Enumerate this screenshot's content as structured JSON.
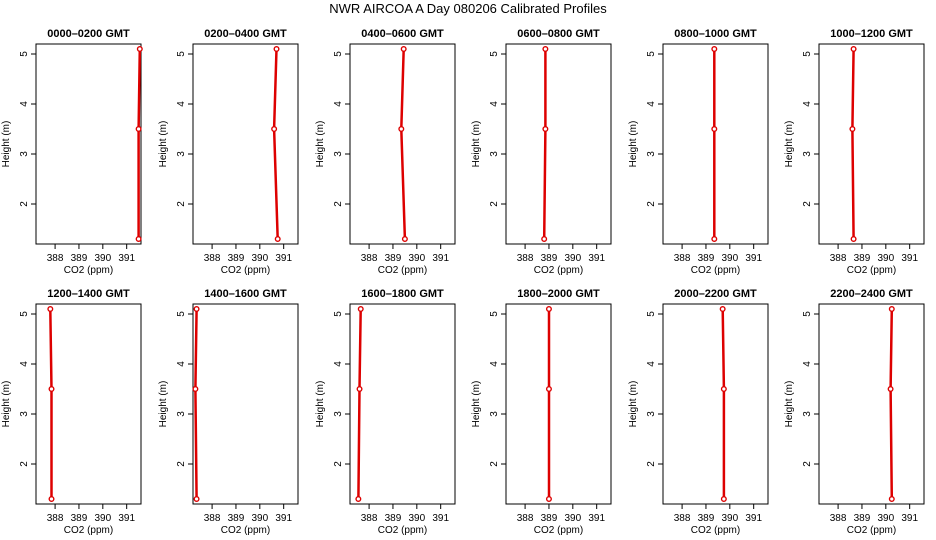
{
  "title": "NWR AIRCOA A  Day 080206  Calibrated Profiles",
  "colors": {
    "profile": "#dd0000",
    "axis": "#000000",
    "background": "#ffffff"
  },
  "chart_data": [
    {
      "type": "line",
      "title": "0000–0200 GMT",
      "xlabel": "CO2 (ppm)",
      "ylabel": "Height (m)",
      "xlim": [
        387.2,
        391.6
      ],
      "ylim": [
        1.2,
        5.2
      ],
      "xticks": [
        388,
        389,
        390,
        391
      ],
      "yticks": [
        2,
        3,
        4,
        5
      ],
      "grid": false,
      "series": [
        {
          "x": [
            391.5,
            391.5,
            391.55
          ],
          "y": [
            1.3,
            3.5,
            5.1
          ]
        }
      ]
    },
    {
      "type": "line",
      "title": "0200–0400 GMT",
      "xlabel": "CO2 (ppm)",
      "ylabel": "Height (m)",
      "xlim": [
        387.2,
        391.6
      ],
      "ylim": [
        1.2,
        5.2
      ],
      "xticks": [
        388,
        389,
        390,
        391
      ],
      "yticks": [
        2,
        3,
        4,
        5
      ],
      "grid": false,
      "series": [
        {
          "x": [
            390.75,
            390.6,
            390.7
          ],
          "y": [
            1.3,
            3.5,
            5.1
          ]
        }
      ]
    },
    {
      "type": "line",
      "title": "0400–0600 GMT",
      "xlabel": "CO2 (ppm)",
      "ylabel": "Height (m)",
      "xlim": [
        387.2,
        391.6
      ],
      "ylim": [
        1.2,
        5.2
      ],
      "xticks": [
        388,
        389,
        390,
        391
      ],
      "yticks": [
        2,
        3,
        4,
        5
      ],
      "grid": false,
      "series": [
        {
          "x": [
            389.5,
            389.35,
            389.45
          ],
          "y": [
            1.3,
            3.5,
            5.1
          ]
        }
      ]
    },
    {
      "type": "line",
      "title": "0600–0800 GMT",
      "xlabel": "CO2 (ppm)",
      "ylabel": "Height (m)",
      "xlim": [
        387.2,
        391.6
      ],
      "ylim": [
        1.2,
        5.2
      ],
      "xticks": [
        388,
        389,
        390,
        391
      ],
      "yticks": [
        2,
        3,
        4,
        5
      ],
      "grid": false,
      "series": [
        {
          "x": [
            388.8,
            388.85,
            388.85
          ],
          "y": [
            1.3,
            3.5,
            5.1
          ]
        }
      ]
    },
    {
      "type": "line",
      "title": "0800–1000 GMT",
      "xlabel": "CO2 (ppm)",
      "ylabel": "Height (m)",
      "xlim": [
        387.2,
        391.6
      ],
      "ylim": [
        1.2,
        5.2
      ],
      "xticks": [
        388,
        389,
        390,
        391
      ],
      "yticks": [
        2,
        3,
        4,
        5
      ],
      "grid": false,
      "series": [
        {
          "x": [
            389.35,
            389.35,
            389.35
          ],
          "y": [
            1.3,
            3.5,
            5.1
          ]
        }
      ]
    },
    {
      "type": "line",
      "title": "1000–1200 GMT",
      "xlabel": "CO2 (ppm)",
      "ylabel": "Height (m)",
      "xlim": [
        387.2,
        391.6
      ],
      "ylim": [
        1.2,
        5.2
      ],
      "xticks": [
        388,
        389,
        390,
        391
      ],
      "yticks": [
        2,
        3,
        4,
        5
      ],
      "grid": false,
      "series": [
        {
          "x": [
            388.65,
            388.6,
            388.65
          ],
          "y": [
            1.3,
            3.5,
            5.1
          ]
        }
      ]
    },
    {
      "type": "line",
      "title": "1200–1400 GMT",
      "xlabel": "CO2 (ppm)",
      "ylabel": "Height (m)",
      "xlim": [
        387.2,
        391.6
      ],
      "ylim": [
        1.2,
        5.2
      ],
      "xticks": [
        388,
        389,
        390,
        391
      ],
      "yticks": [
        2,
        3,
        4,
        5
      ],
      "grid": false,
      "series": [
        {
          "x": [
            387.85,
            387.85,
            387.8
          ],
          "y": [
            1.3,
            3.5,
            5.1
          ]
        }
      ]
    },
    {
      "type": "line",
      "title": "1400–1600 GMT",
      "xlabel": "CO2 (ppm)",
      "ylabel": "Height (m)",
      "xlim": [
        387.2,
        391.6
      ],
      "ylim": [
        1.2,
        5.2
      ],
      "xticks": [
        388,
        389,
        390,
        391
      ],
      "yticks": [
        2,
        3,
        4,
        5
      ],
      "grid": false,
      "series": [
        {
          "x": [
            387.35,
            387.3,
            387.35
          ],
          "y": [
            1.3,
            3.5,
            5.1
          ]
        }
      ]
    },
    {
      "type": "line",
      "title": "1600–1800 GMT",
      "xlabel": "CO2 (ppm)",
      "ylabel": "Height (m)",
      "xlim": [
        387.2,
        391.6
      ],
      "ylim": [
        1.2,
        5.2
      ],
      "xticks": [
        388,
        389,
        390,
        391
      ],
      "yticks": [
        2,
        3,
        4,
        5
      ],
      "grid": false,
      "series": [
        {
          "x": [
            387.55,
            387.6,
            387.65
          ],
          "y": [
            1.3,
            3.5,
            5.1
          ]
        }
      ]
    },
    {
      "type": "line",
      "title": "1800–2000 GMT",
      "xlabel": "CO2 (ppm)",
      "ylabel": "Height (m)",
      "xlim": [
        387.2,
        391.6
      ],
      "ylim": [
        1.2,
        5.2
      ],
      "xticks": [
        388,
        389,
        390,
        391
      ],
      "yticks": [
        2,
        3,
        4,
        5
      ],
      "grid": false,
      "series": [
        {
          "x": [
            389.0,
            389.0,
            389.0
          ],
          "y": [
            1.3,
            3.5,
            5.1
          ]
        }
      ]
    },
    {
      "type": "line",
      "title": "2000–2200 GMT",
      "xlabel": "CO2 (ppm)",
      "ylabel": "Height (m)",
      "xlim": [
        387.2,
        391.6
      ],
      "ylim": [
        1.2,
        5.2
      ],
      "xticks": [
        388,
        389,
        390,
        391
      ],
      "yticks": [
        2,
        3,
        4,
        5
      ],
      "grid": false,
      "series": [
        {
          "x": [
            389.75,
            389.75,
            389.7
          ],
          "y": [
            1.3,
            3.5,
            5.1
          ]
        }
      ]
    },
    {
      "type": "line",
      "title": "2200–2400 GMT",
      "xlabel": "CO2 (ppm)",
      "ylabel": "Height (m)",
      "xlim": [
        387.2,
        391.6
      ],
      "ylim": [
        1.2,
        5.2
      ],
      "xticks": [
        388,
        389,
        390,
        391
      ],
      "yticks": [
        2,
        3,
        4,
        5
      ],
      "grid": false,
      "series": [
        {
          "x": [
            390.25,
            390.2,
            390.25
          ],
          "y": [
            1.3,
            3.5,
            5.1
          ]
        }
      ]
    }
  ]
}
